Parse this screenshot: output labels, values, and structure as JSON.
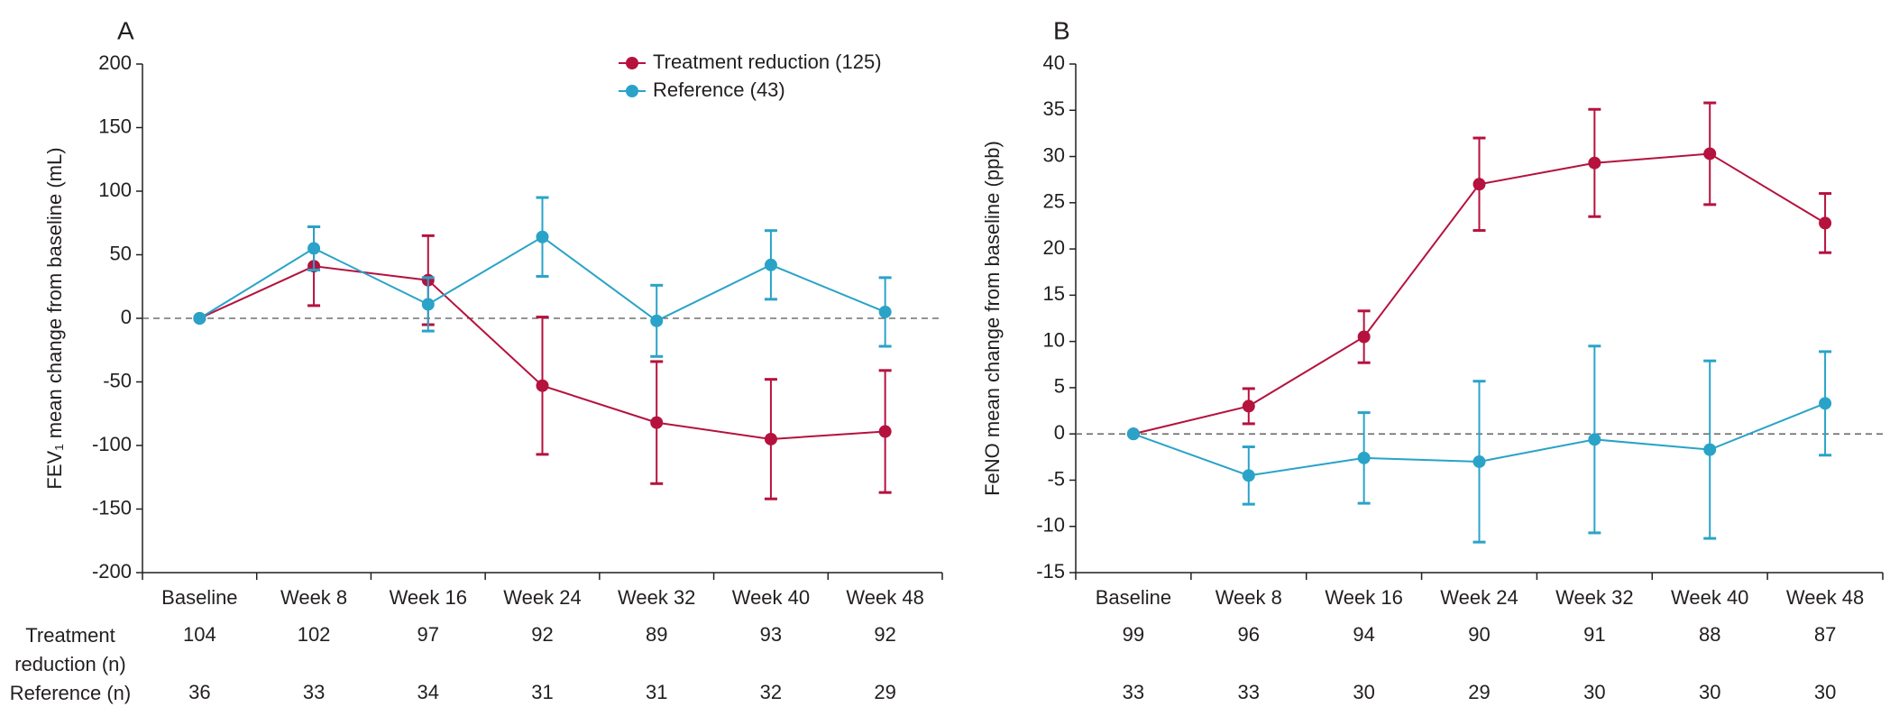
{
  "chart_data": [
    {
      "type": "line",
      "panel_label": "A",
      "ylabel": "FEV₁ mean change from baseline (mL)",
      "categories": [
        "Baseline",
        "Week 8",
        "Week 16",
        "Week 24",
        "Week 32",
        "Week 40",
        "Week 48"
      ],
      "ylim": [
        -200,
        200
      ],
      "yticks": [
        -200,
        -150,
        -100,
        -50,
        0,
        50,
        100,
        150,
        200
      ],
      "zero_line": true,
      "legend": true,
      "series": [
        {
          "name": "Treatment reduction (125)",
          "color": "#b5123e",
          "values": [
            0,
            41,
            30,
            -53,
            -82,
            -95,
            -89
          ],
          "errors": [
            null,
            31,
            35,
            54,
            48,
            47,
            48
          ]
        },
        {
          "name": "Reference (43)",
          "color": "#2aa3c8",
          "values": [
            0,
            55,
            11,
            64,
            -2,
            42,
            5
          ],
          "errors": [
            null,
            17,
            21,
            31,
            28,
            27,
            27
          ]
        }
      ],
      "n_rows": [
        {
          "label": "Treatment reduction (n)",
          "values": [
            104,
            102,
            97,
            92,
            89,
            93,
            92
          ]
        },
        {
          "label": "Reference (n)",
          "values": [
            36,
            33,
            34,
            31,
            31,
            32,
            29
          ]
        }
      ]
    },
    {
      "type": "line",
      "panel_label": "B",
      "ylabel": "FeNO mean change from baseline (ppb)",
      "categories": [
        "Baseline",
        "Week 8",
        "Week 16",
        "Week 24",
        "Week 32",
        "Week 40",
        "Week 48"
      ],
      "ylim": [
        -15,
        40
      ],
      "yticks": [
        -15,
        -10,
        -5,
        0,
        5,
        10,
        15,
        20,
        25,
        30,
        35,
        40
      ],
      "zero_line": true,
      "legend": false,
      "series": [
        {
          "color": "#b5123e",
          "values": [
            0,
            3,
            10.5,
            27,
            29.3,
            30.3,
            22.8
          ],
          "errors": [
            null,
            1.9,
            2.8,
            5,
            5.8,
            5.5,
            3.2
          ]
        },
        {
          "color": "#2aa3c8",
          "values": [
            0,
            -4.5,
            -2.6,
            -3,
            -0.6,
            -1.7,
            3.3
          ],
          "errors": [
            null,
            3.1,
            4.9,
            8.7,
            10.1,
            9.6,
            5.6
          ]
        }
      ],
      "n_rows": [
        {
          "values": [
            99,
            96,
            94,
            90,
            91,
            88,
            87
          ]
        },
        {
          "values": [
            33,
            33,
            30,
            29,
            30,
            30,
            30
          ]
        }
      ]
    }
  ]
}
